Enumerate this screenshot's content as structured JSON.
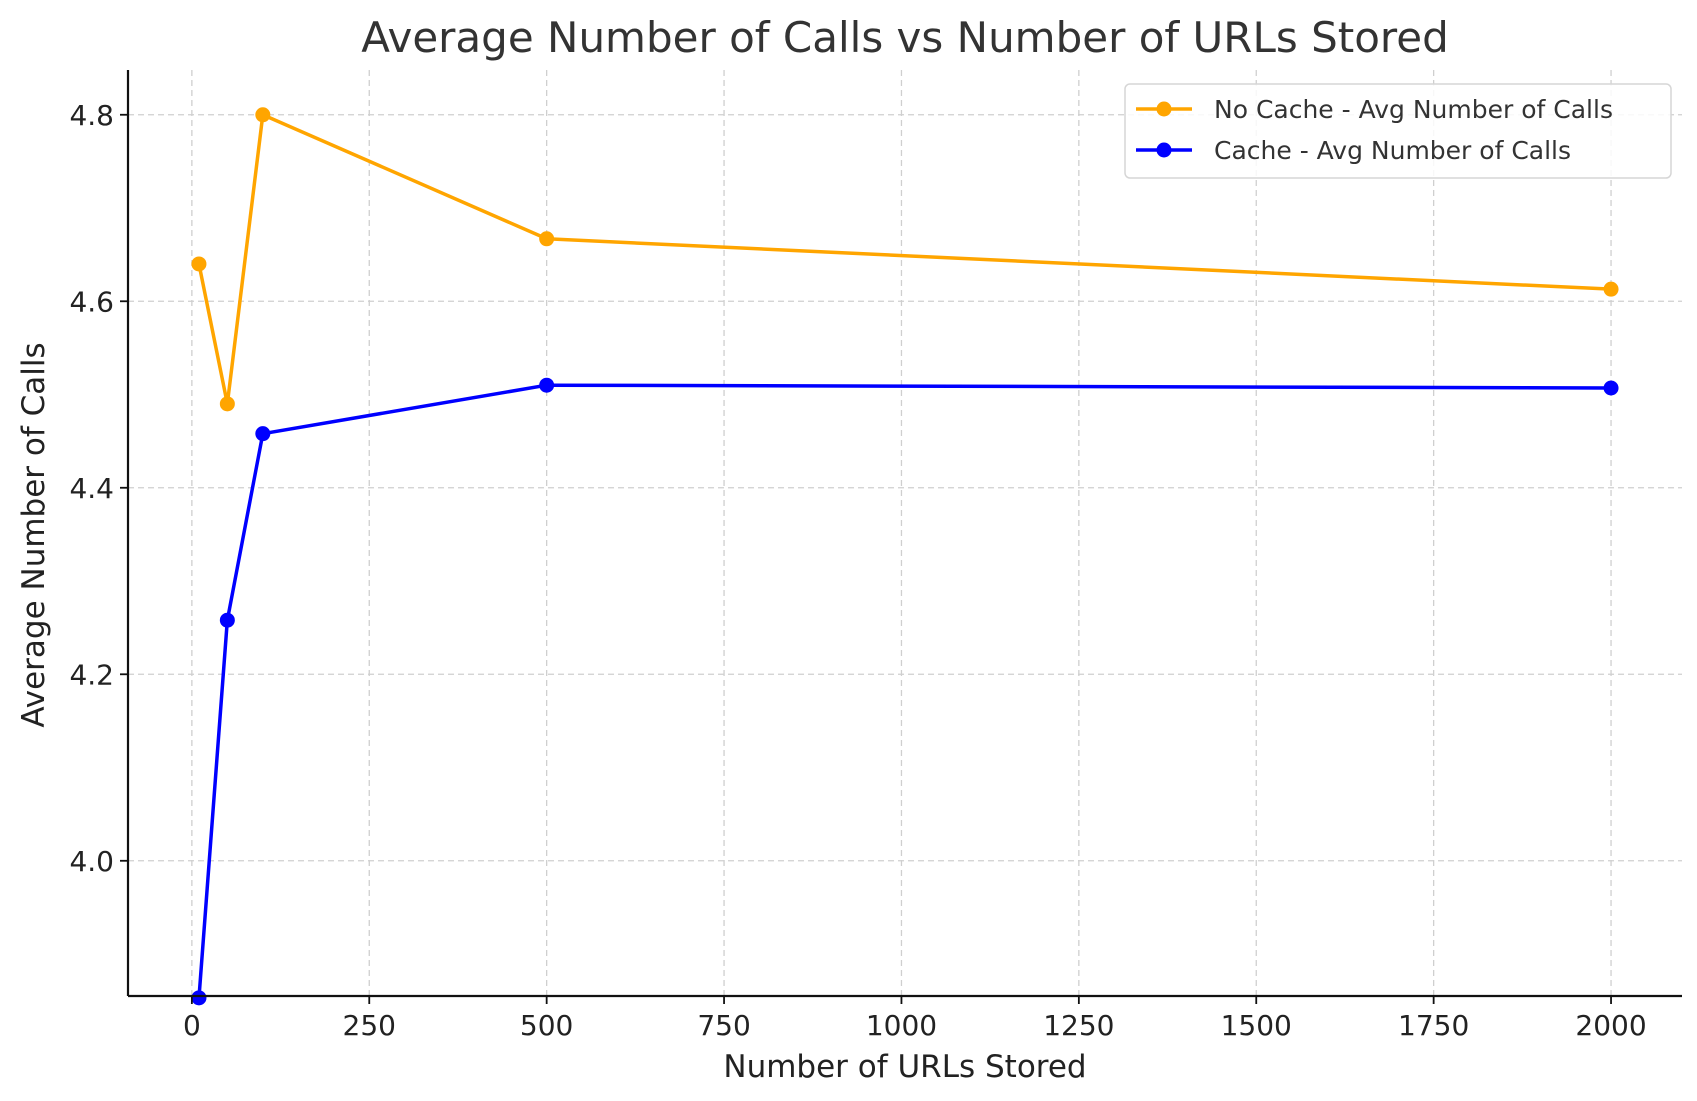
{
  "chart_data": {
    "type": "line",
    "title": "Average Number of Calls vs Number of URLs Stored",
    "xlabel": "Number of URLs Stored",
    "ylabel": "Average Number of Calls",
    "xlim": [
      -90,
      2100
    ],
    "ylim": [
      3.855,
      4.848
    ],
    "xticks": [
      0,
      250,
      500,
      750,
      1000,
      1250,
      1500,
      1750,
      2000
    ],
    "yticks": [
      4.0,
      4.2,
      4.4,
      4.6,
      4.8
    ],
    "xtick_labels": [
      "0",
      "250",
      "500",
      "750",
      "1000",
      "1250",
      "1500",
      "1750",
      "2000"
    ],
    "ytick_labels": [
      "4.0",
      "4.2",
      "4.4",
      "4.6",
      "4.8"
    ],
    "grid": true,
    "legend_position": "top-right",
    "x": [
      10,
      50,
      100,
      500,
      2000
    ],
    "series": [
      {
        "name": "No Cache - Avg Number of Calls",
        "color": "#FFA500",
        "marker": "circle",
        "values": [
          4.64,
          4.49,
          4.8,
          4.667,
          4.613
        ]
      },
      {
        "name": "Cache - Avg Number of Calls",
        "color": "#0000FF",
        "marker": "circle",
        "values": [
          3.853,
          4.258,
          4.458,
          4.51,
          4.507
        ]
      }
    ]
  }
}
